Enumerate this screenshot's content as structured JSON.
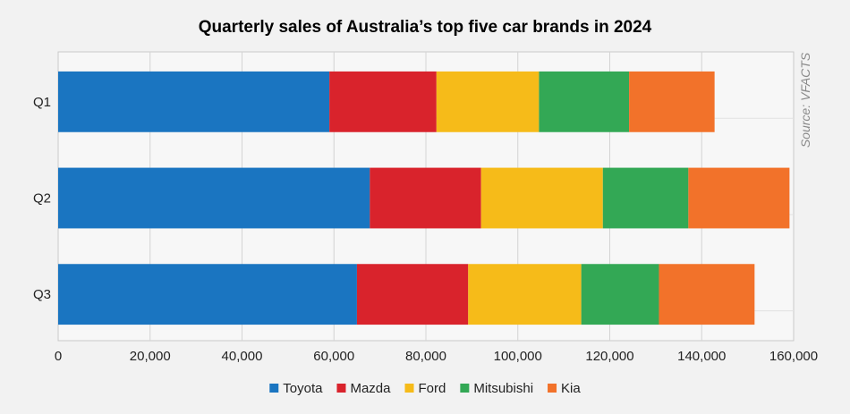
{
  "chart_data": {
    "type": "bar",
    "orientation": "horizontal",
    "stacked": true,
    "title": "Quarterly sales of Australia’s top five car brands in 2024",
    "source": "Source: VFACTS",
    "categories": [
      "Q1",
      "Q2",
      "Q3"
    ],
    "series": [
      {
        "name": "Toyota",
        "color": "#1a75c1",
        "values": [
          59000,
          67800,
          65000
        ]
      },
      {
        "name": "Mazda",
        "color": "#d9232c",
        "values": [
          23300,
          24200,
          24200
        ]
      },
      {
        "name": "Ford",
        "color": "#f6bb19",
        "values": [
          22300,
          26500,
          24600
        ]
      },
      {
        "name": "Mitsubishi",
        "color": "#33a855",
        "values": [
          19600,
          18600,
          16900
        ]
      },
      {
        "name": "Kia",
        "color": "#f2722a",
        "values": [
          18600,
          22000,
          20800
        ]
      }
    ],
    "xlim": [
      0,
      160000
    ],
    "xticks": [
      0,
      20000,
      40000,
      60000,
      80000,
      100000,
      120000,
      140000,
      160000
    ],
    "xtick_labels": [
      "0",
      "20,000",
      "40,000",
      "60,000",
      "80,000",
      "100,000",
      "120,000",
      "140,000",
      "160,000"
    ],
    "grid": true,
    "legend_position": "bottom"
  }
}
